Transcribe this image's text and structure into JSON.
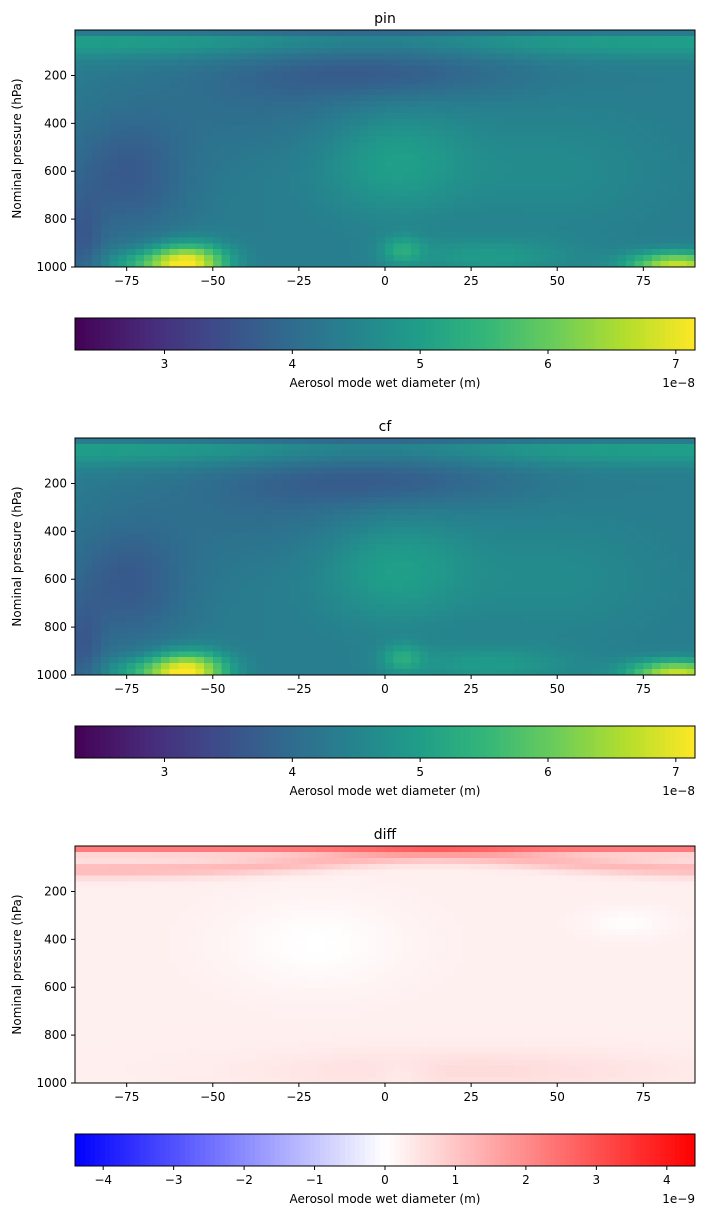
{
  "chart_data": [
    {
      "type": "heatmap",
      "title": "pin",
      "xlabel": "",
      "ylabel": "Nominal pressure (hPa)",
      "xlim": [
        -90,
        90
      ],
      "ylim": [
        1000,
        10
      ],
      "x_ticks": [
        -75,
        -50,
        -25,
        0,
        25,
        50,
        75
      ],
      "y_ticks": [
        200,
        400,
        600,
        800,
        1000
      ],
      "colorbar": {
        "label": "Aerosol mode wet diameter (m)",
        "colormap": "viridis",
        "range": [
          2.3e-08,
          7.15e-08
        ],
        "ticks": [
          3,
          4,
          5,
          6,
          7
        ],
        "multiplier": "1e−8"
      },
      "features": {
        "surface_max_sh": {
          "lat": -57,
          "pressure": 980,
          "value": 7e-08
        },
        "surface_max_nh": {
          "lat": 82,
          "pressure": 990,
          "value": 6.8e-08
        },
        "tropical_mid": {
          "lat": 3,
          "pressure": 600,
          "value": 5.2e-08
        },
        "stratosphere_band": {
          "pressure": 50,
          "value": 5e-08
        },
        "minimum": {
          "lat": -80,
          "pressure": 650,
          "value": 3e-08
        }
      }
    },
    {
      "type": "heatmap",
      "title": "cf",
      "xlabel": "",
      "ylabel": "Nominal pressure (hPa)",
      "xlim": [
        -90,
        90
      ],
      "ylim": [
        1000,
        10
      ],
      "x_ticks": [
        -75,
        -50,
        -25,
        0,
        25,
        50,
        75
      ],
      "y_ticks": [
        200,
        400,
        600,
        800,
        1000
      ],
      "colorbar": {
        "label": "Aerosol mode wet diameter (m)",
        "colormap": "viridis",
        "range": [
          2.3e-08,
          7.15e-08
        ],
        "ticks": [
          3,
          4,
          5,
          6,
          7
        ],
        "multiplier": "1e−8"
      },
      "features": {
        "surface_max_sh": {
          "lat": -57,
          "pressure": 980,
          "value": 7e-08
        },
        "surface_max_nh": {
          "lat": 82,
          "pressure": 990,
          "value": 6.8e-08
        },
        "tropical_mid": {
          "lat": 3,
          "pressure": 600,
          "value": 5.2e-08
        },
        "stratosphere_band": {
          "pressure": 50,
          "value": 5e-08
        },
        "minimum": {
          "lat": -80,
          "pressure": 650,
          "value": 3e-08
        }
      }
    },
    {
      "type": "heatmap",
      "title": "diff",
      "xlabel": "",
      "ylabel": "Nominal pressure (hPa)",
      "xlim": [
        -90,
        90
      ],
      "ylim": [
        1000,
        10
      ],
      "x_ticks": [
        -75,
        -50,
        -25,
        0,
        25,
        50,
        75
      ],
      "y_ticks": [
        200,
        400,
        600,
        800,
        1000
      ],
      "colorbar": {
        "label": "Aerosol mode wet diameter (m)",
        "colormap": "bwr",
        "range": [
          -4.4e-09,
          4.4e-09
        ],
        "ticks": [
          -4,
          -3,
          -2,
          -1,
          0,
          1,
          2,
          3,
          4
        ],
        "multiplier": "1e−9"
      },
      "features": {
        "top_band": {
          "pressure": 20,
          "value": 2.5e-09
        },
        "upper_arc": {
          "pressure": 100,
          "value": 1.5e-09
        },
        "near_surface": {
          "pressure": 950,
          "value": 6e-10
        }
      }
    }
  ]
}
